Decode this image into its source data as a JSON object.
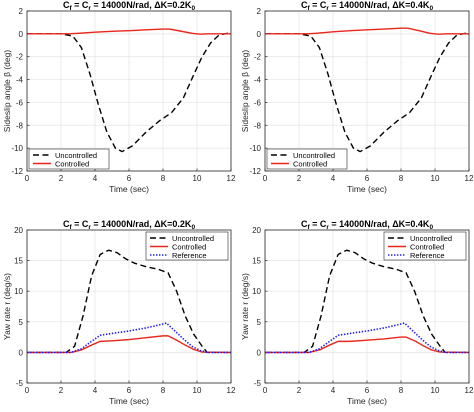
{
  "chart_data": [
    {
      "type": "line",
      "title": {
        "base": "C",
        "s1": "f",
        "mid": " = C",
        "s2": "r",
        "rest": " = 14000N/rad, ΔK=0.2K",
        "s3": "0"
      },
      "xlabel": "Time (sec)",
      "ylabel": "Sideslip angle β (deg)",
      "xlim": [
        0,
        12
      ],
      "ylim": [
        -12,
        2
      ],
      "xticks": [
        "0",
        "2",
        "4",
        "6",
        "8",
        "10",
        "12"
      ],
      "yticks": [
        "2",
        "0",
        "-2",
        "-4",
        "-6",
        "-8",
        "-10",
        "-12"
      ],
      "grid": true,
      "legend_position": "bottom-left",
      "series": [
        {
          "name": "Uncontrolled",
          "color": "#000000",
          "style": "dashed",
          "x": [
            0,
            2.0,
            2.7,
            3.2,
            3.7,
            4.2,
            4.7,
            5.2,
            5.6,
            6.2,
            7.0,
            7.8,
            8.5,
            9.2,
            9.8,
            10.3,
            10.8,
            11.3,
            11.8,
            12
          ],
          "y": [
            0,
            0,
            -0.2,
            -1.2,
            -3.5,
            -6.2,
            -8.6,
            -10.0,
            -10.3,
            -9.8,
            -8.6,
            -7.6,
            -6.9,
            -5.6,
            -3.6,
            -2.0,
            -0.8,
            -0.1,
            0.05,
            0
          ]
        },
        {
          "name": "Controlled",
          "color": "#e8261c",
          "style": "solid",
          "x": [
            0,
            2.5,
            3.0,
            4.0,
            5.0,
            6.0,
            7.0,
            8.0,
            8.4,
            9.0,
            9.7,
            10.2,
            10.7,
            12
          ],
          "y": [
            0,
            0,
            0.05,
            0.15,
            0.22,
            0.28,
            0.35,
            0.42,
            0.42,
            0.25,
            0.05,
            -0.03,
            0,
            0
          ]
        }
      ]
    },
    {
      "type": "line",
      "title": {
        "base": "C",
        "s1": "f",
        "mid": " = C",
        "s2": "r",
        "rest": " = 14000N/rad, ΔK=0.4K",
        "s3": "0"
      },
      "xlabel": "Time (sec)",
      "ylabel": "Sideslip angle β (deg)",
      "xlim": [
        0,
        12
      ],
      "ylim": [
        -12,
        2
      ],
      "xticks": [
        "0",
        "2",
        "4",
        "6",
        "8",
        "10",
        "12"
      ],
      "yticks": [
        "2",
        "0",
        "-2",
        "-4",
        "-6",
        "-8",
        "-10",
        "-12"
      ],
      "grid": true,
      "legend_position": "bottom-left",
      "series": [
        {
          "name": "Uncontrolled",
          "color": "#000000",
          "style": "dashed",
          "x": [
            0,
            2.0,
            2.7,
            3.2,
            3.7,
            4.2,
            4.7,
            5.2,
            5.6,
            6.2,
            7.0,
            7.8,
            8.5,
            9.2,
            9.8,
            10.3,
            10.8,
            11.3,
            11.8,
            12
          ],
          "y": [
            0,
            0,
            -0.2,
            -1.2,
            -3.5,
            -6.2,
            -8.6,
            -10.0,
            -10.3,
            -9.8,
            -8.6,
            -7.6,
            -6.9,
            -5.6,
            -3.6,
            -2.0,
            -0.8,
            -0.1,
            0.05,
            0
          ]
        },
        {
          "name": "Controlled",
          "color": "#e8261c",
          "style": "solid",
          "x": [
            0,
            2.5,
            3.0,
            4.0,
            5.0,
            6.0,
            7.0,
            8.0,
            8.4,
            9.0,
            9.7,
            10.2,
            10.7,
            12
          ],
          "y": [
            0,
            0,
            0.05,
            0.18,
            0.28,
            0.35,
            0.42,
            0.5,
            0.5,
            0.3,
            0.05,
            -0.03,
            0,
            0
          ]
        }
      ]
    },
    {
      "type": "line",
      "title": {
        "base": "C",
        "s1": "f",
        "mid": " = C",
        "s2": "r",
        "rest": " = 14000N/rad, ΔK=0.2K",
        "s3": "0"
      },
      "xlabel": "Time (sec)",
      "ylabel": "Yaw rate r (deg/s)",
      "xlim": [
        0,
        12
      ],
      "ylim": [
        -5,
        20
      ],
      "xticks": [
        "0",
        "2",
        "4",
        "6",
        "8",
        "10",
        "12"
      ],
      "yticks": [
        "20",
        "15",
        "10",
        "5",
        "0",
        "-5"
      ],
      "grid": true,
      "legend_position": "top-right",
      "series": [
        {
          "name": "Uncontrolled",
          "color": "#000000",
          "style": "dashed",
          "x": [
            0,
            2.3,
            2.8,
            3.3,
            3.8,
            4.3,
            4.8,
            5.3,
            5.8,
            6.3,
            7.0,
            7.7,
            8.3,
            8.8,
            9.3,
            9.8,
            10.3,
            10.6,
            12
          ],
          "y": [
            0,
            0,
            1.0,
            6.0,
            12.5,
            16.0,
            16.7,
            16.3,
            15.3,
            14.6,
            14.0,
            13.6,
            13.0,
            10.0,
            6.0,
            3.0,
            1.0,
            0,
            0
          ]
        },
        {
          "name": "Controlled",
          "color": "#e8261c",
          "style": "solid",
          "x": [
            0,
            2.6,
            3.2,
            3.8,
            4.3,
            5.0,
            6.0,
            7.0,
            8.0,
            8.3,
            8.8,
            9.3,
            9.8,
            10.3,
            12
          ],
          "y": [
            0,
            0,
            0.4,
            1.2,
            1.8,
            1.9,
            2.1,
            2.4,
            2.7,
            2.7,
            2.0,
            1.2,
            0.5,
            0.05,
            0
          ]
        },
        {
          "name": "Reference",
          "color": "#1a1aff",
          "style": "dotted",
          "x": [
            0,
            2.6,
            3.2,
            3.8,
            4.3,
            5.0,
            6.0,
            7.0,
            7.8,
            8.2,
            8.7,
            9.2,
            9.7,
            10.2,
            10.6,
            12
          ],
          "y": [
            0,
            0,
            0.6,
            1.8,
            2.8,
            3.1,
            3.5,
            4.0,
            4.5,
            4.8,
            3.5,
            2.2,
            1.0,
            0.3,
            0,
            0
          ]
        }
      ]
    },
    {
      "type": "line",
      "title": {
        "base": "C",
        "s1": "f",
        "mid": " = C",
        "s2": "r",
        "rest": " = 14000N/rad, ΔK=0.4K",
        "s3": "0"
      },
      "xlabel": "Time (sec)",
      "ylabel": "Yaw rate r (deg/s)",
      "xlim": [
        0,
        12
      ],
      "ylim": [
        -5,
        20
      ],
      "xticks": [
        "0",
        "2",
        "4",
        "6",
        "8",
        "10",
        "12"
      ],
      "yticks": [
        "20",
        "15",
        "10",
        "5",
        "0",
        "-5"
      ],
      "grid": true,
      "legend_position": "top-right",
      "series": [
        {
          "name": "Uncontrolled",
          "color": "#000000",
          "style": "dashed",
          "x": [
            0,
            2.3,
            2.8,
            3.3,
            3.8,
            4.3,
            4.8,
            5.3,
            5.8,
            6.3,
            7.0,
            7.7,
            8.3,
            8.8,
            9.3,
            9.8,
            10.3,
            10.6,
            12
          ],
          "y": [
            0,
            0,
            1.0,
            6.0,
            12.5,
            16.0,
            16.7,
            16.3,
            15.3,
            14.6,
            14.0,
            13.6,
            13.0,
            10.0,
            6.0,
            3.0,
            1.0,
            0,
            0
          ]
        },
        {
          "name": "Controlled",
          "color": "#e8261c",
          "style": "solid",
          "x": [
            0,
            2.6,
            3.2,
            3.8,
            4.3,
            5.0,
            6.0,
            7.0,
            8.0,
            8.3,
            8.8,
            9.3,
            9.8,
            10.3,
            12
          ],
          "y": [
            0,
            0,
            0.4,
            1.2,
            1.8,
            1.8,
            2.0,
            2.2,
            2.5,
            2.5,
            1.9,
            1.1,
            0.4,
            0.05,
            0
          ]
        },
        {
          "name": "Reference",
          "color": "#1a1aff",
          "style": "dotted",
          "x": [
            0,
            2.6,
            3.2,
            3.8,
            4.3,
            5.0,
            6.0,
            7.0,
            7.8,
            8.2,
            8.7,
            9.2,
            9.7,
            10.2,
            10.6,
            12
          ],
          "y": [
            0,
            0,
            0.6,
            1.8,
            2.8,
            3.1,
            3.5,
            4.0,
            4.5,
            4.8,
            3.5,
            2.2,
            1.0,
            0.3,
            0,
            0
          ]
        }
      ]
    }
  ]
}
